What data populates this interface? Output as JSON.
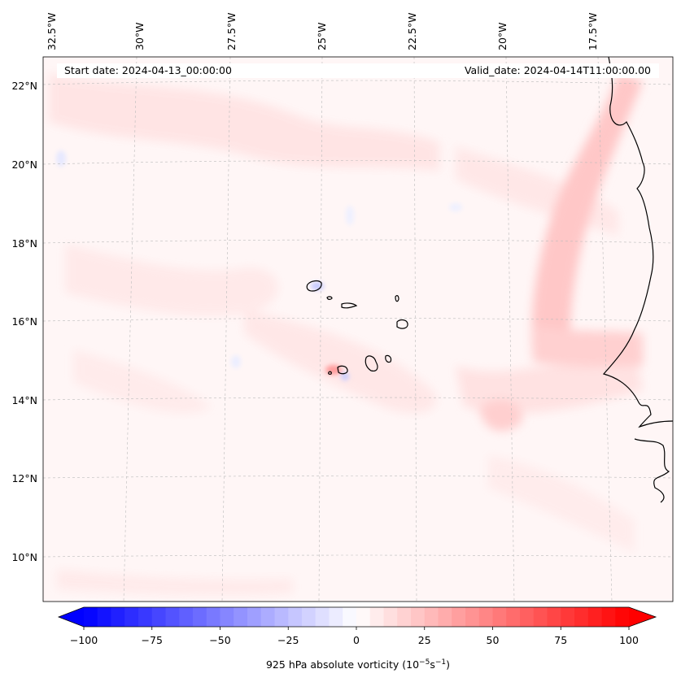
{
  "map": {
    "start_date": "Start date: 2024-04-13_00:00:00",
    "valid_date": "Valid_date: 2024-04-14T11:00:00.00",
    "lon_labels": [
      "32.5°W",
      "30°W",
      "27.5°W",
      "25°W",
      "22.5°W",
      "20°W",
      "17.5°W"
    ],
    "lat_labels": [
      "22°N",
      "20°N",
      "18°N",
      "16°N",
      "14°N",
      "12°N",
      "10°N"
    ],
    "colors": {
      "min": "#0000ff",
      "mid": "#ffffff",
      "max": "#ff0000",
      "coast": "#000000",
      "grid": "#bbbbbb"
    }
  },
  "colorbar": {
    "label_prefix": "925 hPa absolute vorticity (10",
    "label_exp1": "−5",
    "label_mid": "s",
    "label_exp2": "−1",
    "label_suffix": ")",
    "min": -100,
    "max": 100,
    "step": 5,
    "ticks": [
      "−100",
      "−75",
      "−50",
      "−25",
      "0",
      "25",
      "50",
      "75",
      "100"
    ]
  }
}
